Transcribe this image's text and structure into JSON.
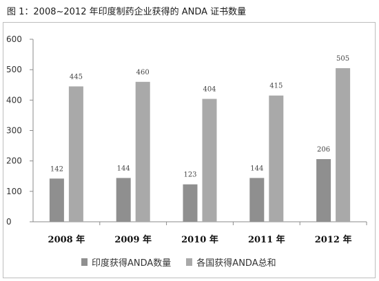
{
  "caption": "图 1：2008~2012 年印度制药企业获得的 ANDA 证书数量",
  "colors": {
    "series1": "#8f8f8f",
    "series2": "#a9a9a9",
    "axis": "#8a8a8a",
    "text": "#333333"
  },
  "chart_data": {
    "type": "bar",
    "categories": [
      "2008 年",
      "2009 年",
      "2010 年",
      "2011 年",
      "2012 年"
    ],
    "series": [
      {
        "name": "印度获得ANDA数量",
        "values": [
          142,
          144,
          123,
          144,
          206
        ]
      },
      {
        "name": "各国获得ANDA总和",
        "values": [
          445,
          460,
          404,
          415,
          505
        ]
      }
    ],
    "ylim": [
      0,
      600
    ],
    "yticks": [
      0,
      100,
      200,
      300,
      400,
      500,
      600
    ],
    "data_labels": [
      [
        "142",
        "144",
        "123",
        "144",
        "206"
      ],
      [
        "445",
        "460",
        "404",
        "415",
        "505"
      ]
    ],
    "grid": false,
    "legend_position": "bottom"
  }
}
